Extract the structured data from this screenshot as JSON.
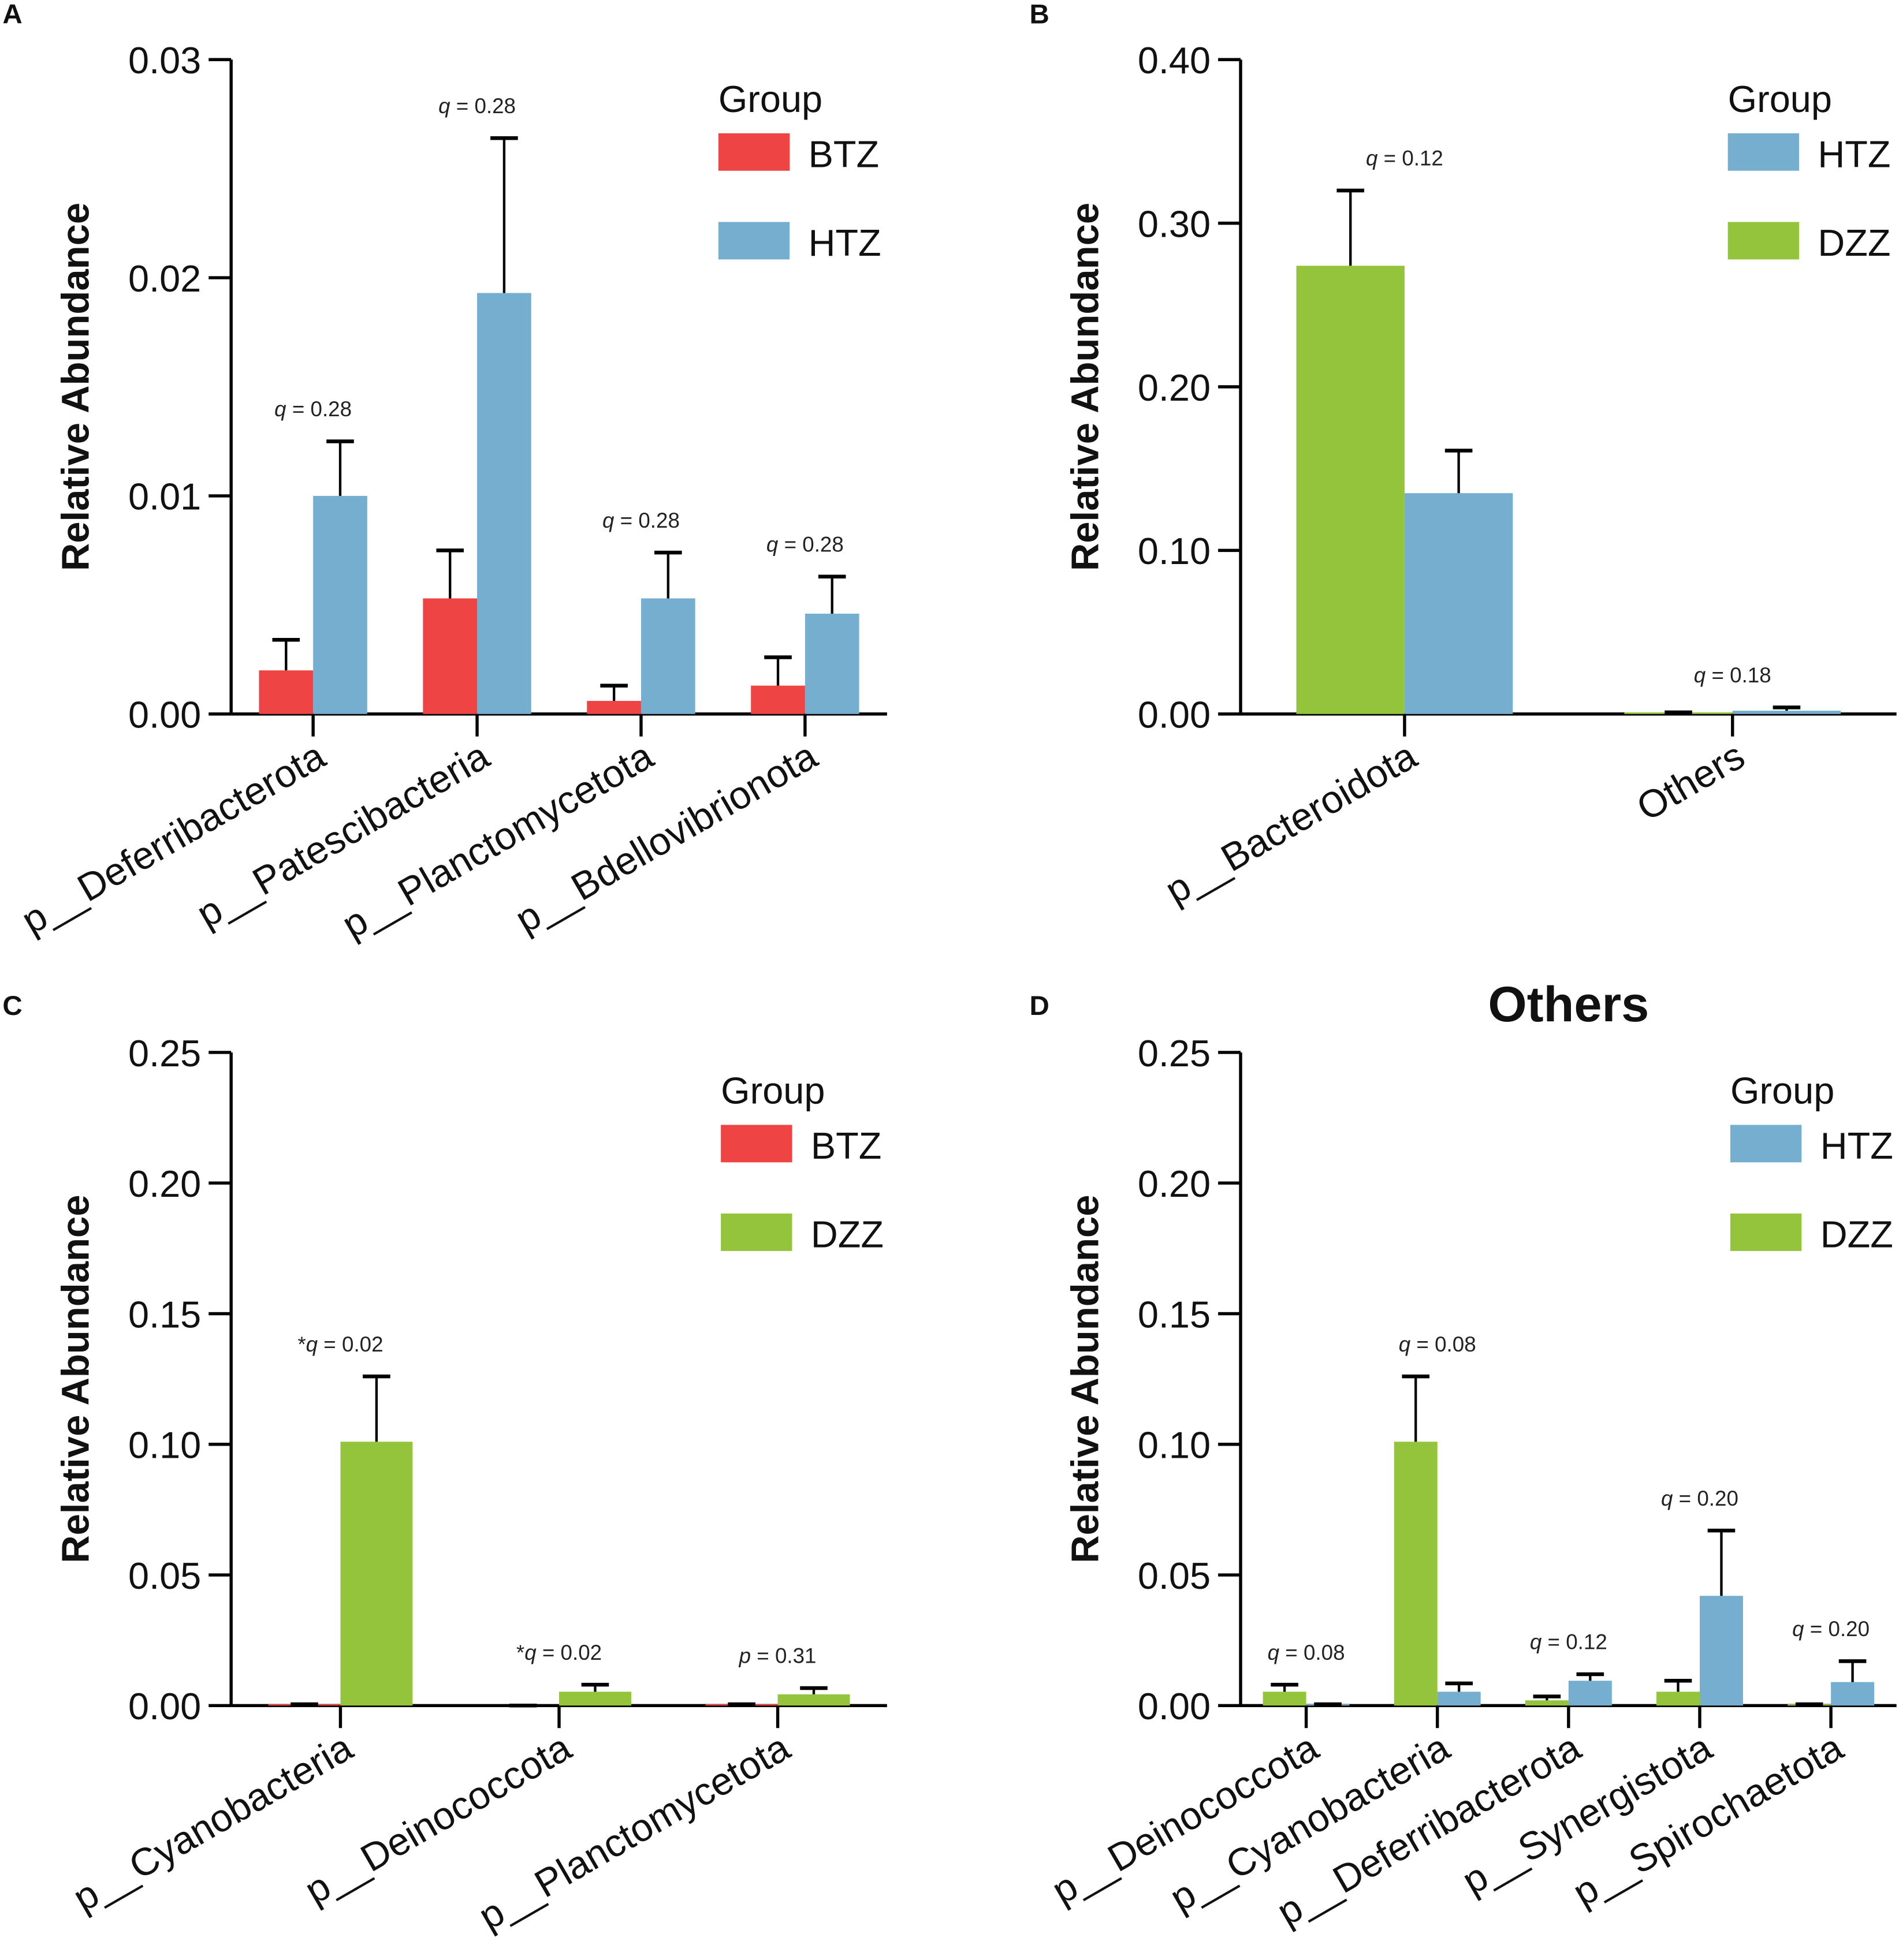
{
  "chart_data": [
    {
      "panel": "A",
      "type": "bar",
      "title": "",
      "ylabel": "Relative Abundance",
      "ylim": [
        0,
        0.03
      ],
      "yticks": [
        "0.00",
        "0.01",
        "0.02",
        "0.03"
      ],
      "legend_title": "Group",
      "legend_placement": "top-right",
      "categories": [
        "p__Deferribacterota",
        "p__Patescibacteria",
        "p__Planctomycetota",
        "p__Bdellovibrionota"
      ],
      "series": [
        {
          "name": "BTZ",
          "color": "#EE4444",
          "values": [
            0.002,
            0.0053,
            0.0006,
            0.0013
          ],
          "error_top": [
            0.0034,
            0.0075,
            0.0013,
            0.0026
          ]
        },
        {
          "name": "HTZ",
          "color": "#76AED0",
          "values": [
            0.01,
            0.0193,
            0.0053,
            0.0046
          ],
          "error_top": [
            0.0125,
            0.0264,
            0.0074,
            0.0063
          ]
        }
      ],
      "legend_order": [
        "BTZ",
        "HTZ"
      ],
      "annotations": [
        {
          "star": "",
          "stat": "q",
          "value": "0.28"
        },
        {
          "star": "",
          "stat": "q",
          "value": "0.28"
        },
        {
          "star": "",
          "stat": "q",
          "value": "0.28"
        },
        {
          "star": "",
          "stat": "q",
          "value": "0.28"
        }
      ]
    },
    {
      "panel": "B",
      "type": "bar",
      "title": "",
      "ylabel": "Relative Abundance",
      "ylim": [
        0,
        0.4
      ],
      "yticks": [
        "0.00",
        "0.10",
        "0.20",
        "0.30",
        "0.40"
      ],
      "legend_title": "Group",
      "legend_placement": "top-right",
      "categories": [
        "p__Bacteroidota",
        "Others"
      ],
      "series": [
        {
          "name": "DZZ",
          "color": "#94C43C",
          "values": [
            0.274,
            0.001
          ],
          "error_top": [
            0.32,
            0.001
          ]
        },
        {
          "name": "HTZ",
          "color": "#76AED0",
          "values": [
            0.135,
            0.002
          ],
          "error_top": [
            0.161,
            0.004
          ]
        }
      ],
      "legend_order": [
        "HTZ",
        "DZZ"
      ],
      "annotations": [
        {
          "star": "",
          "stat": "q",
          "value": "0.12"
        },
        {
          "star": "",
          "stat": "q",
          "value": "0.18"
        }
      ]
    },
    {
      "panel": "C",
      "type": "bar",
      "title": "",
      "ylabel": "Relative Abundance",
      "ylim": [
        0,
        0.25
      ],
      "yticks": [
        "0.00",
        "0.05",
        "0.10",
        "0.15",
        "0.20",
        "0.25"
      ],
      "legend_title": "Group",
      "legend_placement": "top-right",
      "categories": [
        "p__Cyanobacteria",
        "p__Deinococcota",
        "p__Planctomycetota"
      ],
      "series": [
        {
          "name": "BTZ",
          "color": "#EE4444",
          "values": [
            0.0005,
            0.0,
            0.0005
          ],
          "error_top": [
            0.0005,
            0.0,
            0.0005
          ]
        },
        {
          "name": "DZZ",
          "color": "#94C43C",
          "values": [
            0.101,
            0.0053,
            0.0043
          ],
          "error_top": [
            0.126,
            0.008,
            0.0067
          ]
        }
      ],
      "legend_order": [
        "BTZ",
        "DZZ"
      ],
      "annotations": [
        {
          "star": "*",
          "stat": "q",
          "value": "0.02"
        },
        {
          "star": "*",
          "stat": "q",
          "value": "0.02"
        },
        {
          "star": "",
          "stat": "p",
          "value": "0.31"
        }
      ]
    },
    {
      "panel": "D",
      "type": "bar",
      "title": "Others",
      "ylabel": "Relative Abundance",
      "ylim": [
        0,
        0.25
      ],
      "yticks": [
        "0.00",
        "0.05",
        "0.10",
        "0.15",
        "0.20",
        "0.25"
      ],
      "legend_title": "Group",
      "legend_placement": "top-right",
      "categories": [
        "p__Deinococcota",
        "p__Cyanobacteria",
        "p__Deferribacterota",
        "p__Synergistota",
        "p__Spirochaetota"
      ],
      "series": [
        {
          "name": "DZZ",
          "color": "#94C43C",
          "values": [
            0.0053,
            0.101,
            0.002,
            0.0053,
            0.0005
          ],
          "error_top": [
            0.008,
            0.126,
            0.0035,
            0.0095,
            0.0005
          ]
        },
        {
          "name": "HTZ",
          "color": "#76AED0",
          "values": [
            0.0005,
            0.0053,
            0.0095,
            0.042,
            0.009
          ],
          "error_top": [
            0.0005,
            0.0085,
            0.012,
            0.067,
            0.017
          ]
        }
      ],
      "legend_order": [
        "HTZ",
        "DZZ"
      ],
      "annotations": [
        {
          "star": "",
          "stat": "q",
          "value": "0.08"
        },
        {
          "star": "",
          "stat": "q",
          "value": "0.08"
        },
        {
          "star": "",
          "stat": "q",
          "value": "0.12"
        },
        {
          "star": "",
          "stat": "q",
          "value": "0.20"
        },
        {
          "star": "",
          "stat": "q",
          "value": "0.20"
        }
      ]
    }
  ]
}
